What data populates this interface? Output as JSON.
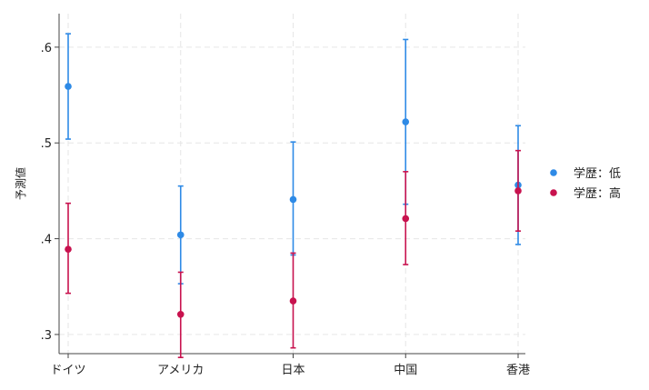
{
  "chart_data": {
    "type": "scatter",
    "ylabel": "予測値",
    "xlabel": "",
    "title": "",
    "categories": [
      "ドイツ",
      "アメリカ",
      "日本",
      "中国",
      "香港"
    ],
    "ylim": [
      0.28,
      0.635
    ],
    "yticks": [
      0.3,
      0.4,
      0.5,
      0.6
    ],
    "ytick_labels": [
      ".3",
      ".4",
      ".5",
      ".6"
    ],
    "grid": true,
    "legend_position": "right",
    "series": [
      {
        "name": "学歴：低",
        "color": "#2e8ae6",
        "values": [
          0.559,
          0.404,
          0.441,
          0.522,
          0.456
        ],
        "ci_low": [
          0.504,
          0.353,
          0.383,
          0.436,
          0.394
        ],
        "ci_high": [
          0.614,
          0.455,
          0.501,
          0.608,
          0.518
        ]
      },
      {
        "name": "学歴：高",
        "color": "#c8124e",
        "values": [
          0.389,
          0.321,
          0.335,
          0.421,
          0.45
        ],
        "ci_low": [
          0.343,
          0.276,
          0.286,
          0.373,
          0.408
        ],
        "ci_high": [
          0.437,
          0.365,
          0.385,
          0.47,
          0.492
        ]
      }
    ]
  }
}
